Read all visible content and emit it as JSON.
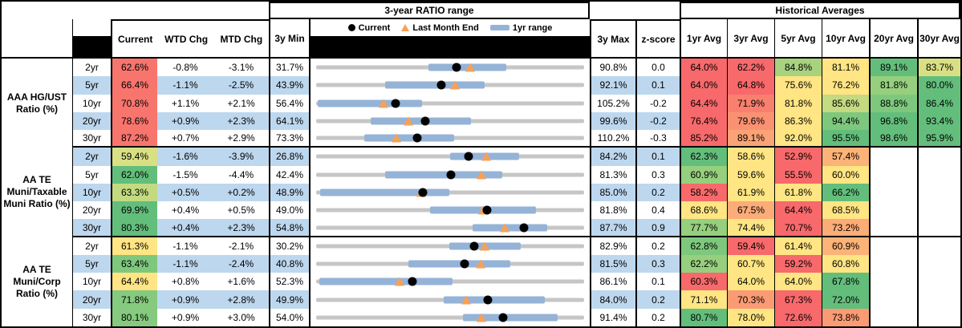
{
  "chart_data": {
    "type": "table",
    "title": "3-year RATIO range",
    "historical_title": "Historical Averages",
    "legend": {
      "current": "Current",
      "last_month": "Last Month End",
      "range": "1yr range"
    },
    "columns": {
      "current": "Current",
      "wtd": "WTD Chg",
      "mtd": "MTD Chg",
      "min": "3y Min",
      "max": "3y Max",
      "z": "z-score",
      "avgs": [
        "1yr Avg",
        "3yr Avg",
        "5yr Avg",
        "10yr Avg",
        "20yr Avg",
        "30yr Avg"
      ]
    },
    "palette": {
      "red": "#F8696B",
      "salmon": "#F8756D",
      "org1": "#F9806F",
      "org2": "#FA9173",
      "org3": "#FBA376",
      "org4": "#FBAC77",
      "org5": "#FBB377",
      "org6": "#FA9B74",
      "yel": "#FFE583",
      "ylg1": "#D9E084",
      "ylg2": "#C3DA80",
      "ltg1": "#A9D27F",
      "ltg2": "#96CF7E",
      "grn": "#63BE7B",
      "grn2": "#7EC87D",
      "grn3": "#85CA7E",
      "none": "#FFFFFF"
    },
    "style_colors": {
      "stripe": "#BDD7EE",
      "range_bar": "#95B3D7",
      "track": "#C6C6C6",
      "triangle": "#F7A056",
      "dot": "#000000"
    },
    "groups": [
      {
        "label": "AAA HG/UST Ratio (%)",
        "rows": [
          {
            "tenor": "2yr",
            "current": {
              "v": "62.6%",
              "c": "salmon"
            },
            "wtd": "-0.8%",
            "mtd": "-3.1%",
            "min": "31.7%",
            "max": "90.8%",
            "z": "0.0",
            "avgs": [
              [
                "64.0%",
                "red"
              ],
              [
                "62.2%",
                "red"
              ],
              [
                "84.8%",
                "ltg1"
              ],
              [
                "81.1%",
                "yel"
              ],
              [
                "89.1%",
                "grn"
              ],
              [
                "83.7%",
                "ylg1"
              ]
            ],
            "range": {
              "b0": 42.0,
              "b1": 71.0,
              "dot": 52.3,
              "tri": 57.5
            }
          },
          {
            "tenor": "5yr",
            "current": {
              "v": "66.4%",
              "c": "salmon"
            },
            "wtd": "-1.1%",
            "mtd": "-2.5%",
            "min": "43.9%",
            "max": "92.1%",
            "z": "0.1",
            "avgs": [
              [
                "64.0%",
                "red"
              ],
              [
                "64.8%",
                "red"
              ],
              [
                "75.6%",
                "yel"
              ],
              [
                "76.2%",
                "yel"
              ],
              [
                "81.8%",
                "ltg2"
              ],
              [
                "80.0%",
                "grn"
              ]
            ],
            "range": {
              "b0": 25.7,
              "b1": 63.0,
              "dot": 46.7,
              "tri": 51.9
            }
          },
          {
            "tenor": "10yr",
            "current": {
              "v": "70.8%",
              "c": "salmon"
            },
            "wtd": "+1.1%",
            "mtd": "+2.1%",
            "min": "56.4%",
            "max": "105.2%",
            "z": "-0.2",
            "avgs": [
              [
                "64.4%",
                "red"
              ],
              [
                "71.9%",
                "org1"
              ],
              [
                "81.8%",
                "yel"
              ],
              [
                "85.6%",
                "ylg2"
              ],
              [
                "88.8%",
                "grn2"
              ],
              [
                "86.4%",
                "grn"
              ]
            ],
            "range": {
              "b0": 0.6,
              "b1": 39.4,
              "dot": 29.5,
              "tri": 25.2
            }
          },
          {
            "tenor": "20yr",
            "current": {
              "v": "78.6%",
              "c": "salmon"
            },
            "wtd": "+0.9%",
            "mtd": "+2.3%",
            "min": "64.1%",
            "max": "99.6%",
            "z": "-0.2",
            "avgs": [
              [
                "76.4%",
                "red"
              ],
              [
                "79.6%",
                "org2"
              ],
              [
                "86.3%",
                "yel"
              ],
              [
                "94.4%",
                "grn2"
              ],
              [
                "96.8%",
                "grn"
              ],
              [
                "93.4%",
                "grn"
              ]
            ],
            "range": {
              "b0": 20.3,
              "b1": 57.9,
              "dot": 40.8,
              "tri": 34.4
            }
          },
          {
            "tenor": "30yr",
            "current": {
              "v": "87.2%",
              "c": "salmon"
            },
            "wtd": "+0.7%",
            "mtd": "+2.9%",
            "min": "73.3%",
            "max": "110.2%",
            "z": "-0.3",
            "avgs": [
              [
                "85.2%",
                "red"
              ],
              [
                "89.1%",
                "org3"
              ],
              [
                "92.0%",
                "yel"
              ],
              [
                "95.5%",
                "grn"
              ],
              [
                "98.6%",
                "grn"
              ],
              [
                "95.9%",
                "grn"
              ]
            ],
            "range": {
              "b0": 18.0,
              "b1": 51.4,
              "dot": 37.7,
              "tri": 29.8
            }
          }
        ]
      },
      {
        "label": "AA TE Muni/Taxable Muni Ratio (%)",
        "rows": [
          {
            "tenor": "2yr",
            "current": {
              "v": "59.4%",
              "c": "ylg1"
            },
            "wtd": "-1.6%",
            "mtd": "-3.9%",
            "min": "26.8%",
            "max": "84.2%",
            "z": "0.1",
            "avgs": [
              [
                "62.3%",
                "grn"
              ],
              [
                "58.6%",
                "yel"
              ],
              [
                "52.9%",
                "red"
              ],
              [
                "57.4%",
                "org5"
              ],
              [
                "",
                ""
              ],
              [
                "",
                ""
              ]
            ],
            "range": {
              "b0": 49.9,
              "b1": 75.8,
              "dot": 56.8,
              "tri": 63.6
            }
          },
          {
            "tenor": "5yr",
            "current": {
              "v": "62.0%",
              "c": "grn"
            },
            "wtd": "-1.5%",
            "mtd": "-4.4%",
            "min": "42.4%",
            "max": "81.3%",
            "z": "0.3",
            "avgs": [
              [
                "60.9%",
                "ltg2"
              ],
              [
                "59.6%",
                "yel"
              ],
              [
                "55.5%",
                "red"
              ],
              [
                "60.0%",
                "yel"
              ],
              [
                "",
                ""
              ],
              [
                "",
                ""
              ]
            ],
            "range": {
              "b0": 25.7,
              "b1": 69.6,
              "dot": 50.4,
              "tri": 61.7
            }
          },
          {
            "tenor": "10yr",
            "current": {
              "v": "63.3%",
              "c": "ylg2"
            },
            "wtd": "+0.5%",
            "mtd": "+0.2%",
            "min": "48.9%",
            "max": "85.0%",
            "z": "0.2",
            "avgs": [
              [
                "58.2%",
                "red"
              ],
              [
                "61.9%",
                "yel"
              ],
              [
                "61.8%",
                "yel"
              ],
              [
                "66.2%",
                "grn"
              ],
              [
                "",
                ""
              ],
              [
                "",
                ""
              ]
            ],
            "range": {
              "b0": 1.5,
              "b1": 49.6,
              "dot": 39.9,
              "tri": 39.3
            }
          },
          {
            "tenor": "20yr",
            "current": {
              "v": "69.9%",
              "c": "grn"
            },
            "wtd": "+0.4%",
            "mtd": "+0.5%",
            "min": "49.0%",
            "max": "81.8%",
            "z": "0.4",
            "avgs": [
              [
                "68.6%",
                "yel"
              ],
              [
                "67.5%",
                "org4"
              ],
              [
                "64.4%",
                "red"
              ],
              [
                "68.5%",
                "yel"
              ],
              [
                "",
                ""
              ],
              [
                "",
                ""
              ]
            ],
            "range": {
              "b0": 42.4,
              "b1": 82.1,
              "dot": 63.7,
              "tri": 62.2
            }
          },
          {
            "tenor": "30yr",
            "current": {
              "v": "80.3%",
              "c": "grn"
            },
            "wtd": "+0.4%",
            "mtd": "+2.3%",
            "min": "54.8%",
            "max": "87.7%",
            "z": "0.9",
            "avgs": [
              [
                "77.7%",
                "ltg2"
              ],
              [
                "74.4%",
                "yel"
              ],
              [
                "70.7%",
                "red"
              ],
              [
                "73.2%",
                "org4"
              ],
              [
                "",
                ""
              ],
              [
                "",
                ""
              ]
            ],
            "range": {
              "b0": 58.5,
              "b1": 86.3,
              "dot": 77.5,
              "tri": 70.5
            }
          }
        ]
      },
      {
        "label": "AA TE Muni/Corp Ratio (%)",
        "rows": [
          {
            "tenor": "2yr",
            "current": {
              "v": "61.3%",
              "c": "yel"
            },
            "wtd": "-1.1%",
            "mtd": "-2.1%",
            "min": "30.2%",
            "max": "82.9%",
            "z": "0.2",
            "avgs": [
              [
                "62.8%",
                "grn2"
              ],
              [
                "59.4%",
                "red"
              ],
              [
                "61.4%",
                "yel"
              ],
              [
                "60.9%",
                "org5"
              ],
              [
                "",
                ""
              ],
              [
                "",
                ""
              ]
            ],
            "range": {
              "b0": 49.7,
              "b1": 76.3,
              "dot": 59.0,
              "tri": 63.0
            }
          },
          {
            "tenor": "5yr",
            "current": {
              "v": "63.4%",
              "c": "grn2"
            },
            "wtd": "-1.1%",
            "mtd": "-2.4%",
            "min": "40.8%",
            "max": "81.5%",
            "z": "0.3",
            "avgs": [
              [
                "62.2%",
                "ltg2"
              ],
              [
                "60.7%",
                "yel"
              ],
              [
                "59.2%",
                "red"
              ],
              [
                "60.8%",
                "yel"
              ],
              [
                "",
                ""
              ],
              [
                "",
                ""
              ]
            ],
            "range": {
              "b0": 34.3,
              "b1": 72.5,
              "dot": 55.5,
              "tri": 61.4
            }
          },
          {
            "tenor": "10yr",
            "current": {
              "v": "64.4%",
              "c": "yel"
            },
            "wtd": "+0.8%",
            "mtd": "+1.6%",
            "min": "52.3%",
            "max": "86.1%",
            "z": "0.1",
            "avgs": [
              [
                "60.3%",
                "red"
              ],
              [
                "64.0%",
                "yel"
              ],
              [
                "64.0%",
                "yel"
              ],
              [
                "67.8%",
                "grn"
              ],
              [
                "",
                ""
              ],
              [
                "",
                ""
              ]
            ],
            "range": {
              "b0": 1.1,
              "b1": 51.0,
              "dot": 35.8,
              "tri": 31.1
            }
          },
          {
            "tenor": "20yr",
            "current": {
              "v": "71.8%",
              "c": "grn3"
            },
            "wtd": "+0.9%",
            "mtd": "+2.8%",
            "min": "49.9%",
            "max": "84.0%",
            "z": "0.2",
            "avgs": [
              [
                "71.1%",
                "yel"
              ],
              [
                "70.3%",
                "org6"
              ],
              [
                "67.3%",
                "red"
              ],
              [
                "72.0%",
                "grn"
              ],
              [
                "",
                ""
              ],
              [
                "",
                ""
              ]
            ],
            "range": {
              "b0": 47.5,
              "b1": 85.2,
              "dot": 64.2,
              "tri": 56.0
            }
          },
          {
            "tenor": "30yr",
            "current": {
              "v": "80.1%",
              "c": "grn3"
            },
            "wtd": "+0.9%",
            "mtd": "+3.0%",
            "min": "54.0%",
            "max": "91.4%",
            "z": "0.2",
            "avgs": [
              [
                "80.7%",
                "grn"
              ],
              [
                "78.0%",
                "yel"
              ],
              [
                "72.6%",
                "red"
              ],
              [
                "73.8%",
                "org6"
              ],
              [
                "",
                ""
              ],
              [
                "",
                ""
              ]
            ],
            "range": {
              "b0": 54.9,
              "b1": 90.1,
              "dot": 69.8,
              "tri": 61.8
            }
          }
        ]
      }
    ]
  }
}
